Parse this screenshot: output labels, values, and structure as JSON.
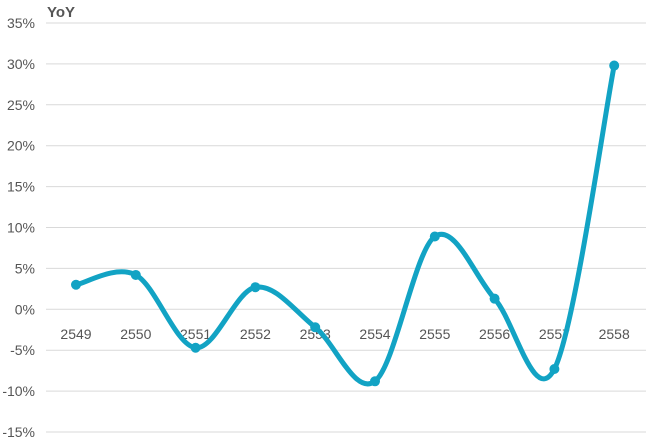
{
  "chart_data": {
    "type": "line",
    "title": "YoY",
    "categories": [
      "2549",
      "2550",
      "2551",
      "2552",
      "2553",
      "2554",
      "2555",
      "2556",
      "2557",
      "2558"
    ],
    "series": [
      {
        "values": [
          3.0,
          4.2,
          -4.7,
          2.7,
          -2.2,
          -8.8,
          8.9,
          1.3,
          -7.3,
          29.8
        ]
      }
    ],
    "ylim": [
      -15,
      35
    ],
    "ytick_step": 5,
    "ytick_suffix": "%",
    "grid": true,
    "smooth": true,
    "line_color": "#12a3c4"
  }
}
